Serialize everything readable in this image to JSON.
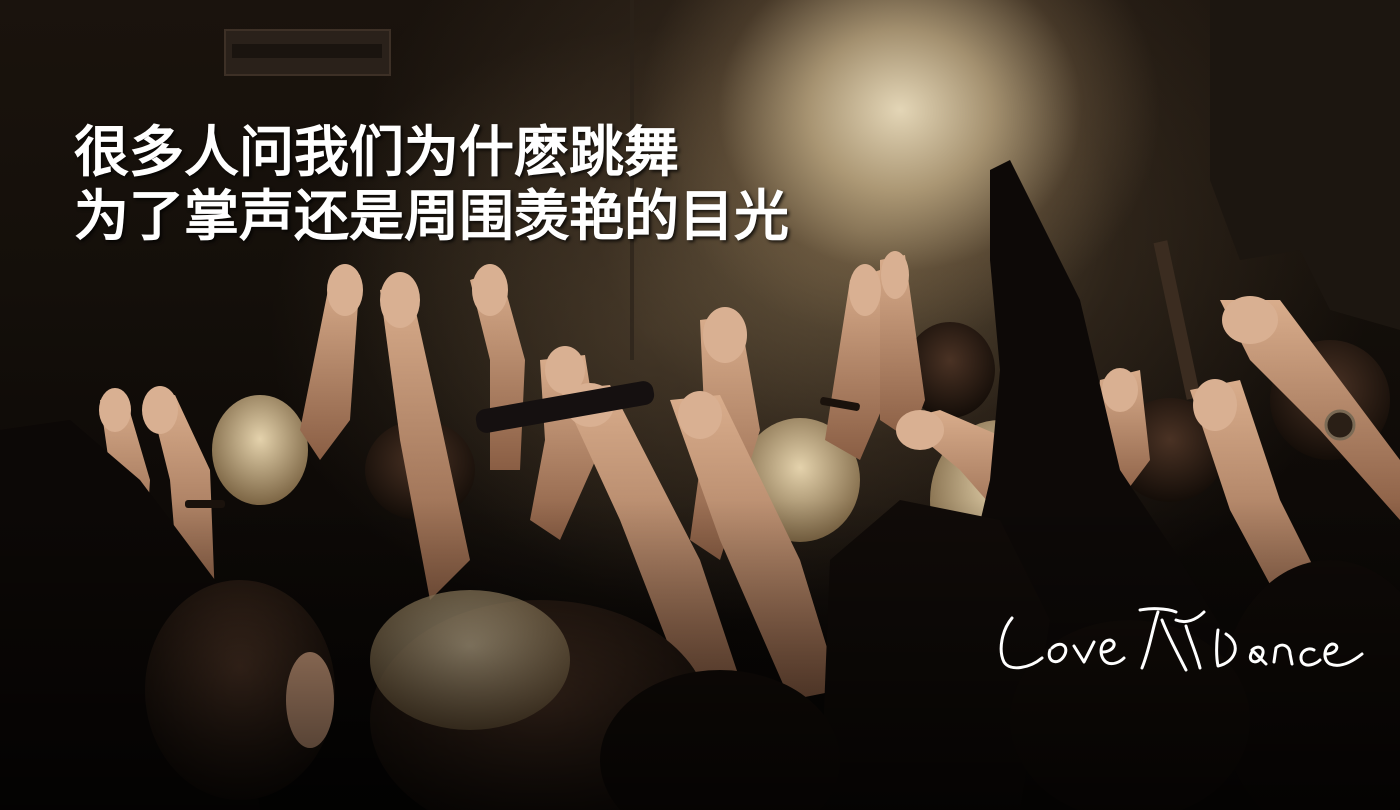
{
  "headline": {
    "line1": "很多人问我们为什麽跳舞",
    "line2": "为了掌声还是周围羡艳的目光"
  },
  "logo": {
    "text": "Love Dance",
    "color": "#ffffff"
  },
  "colors": {
    "stage_light": "#ecdebe",
    "shadow": "#0b0806",
    "skin": "#c99a7a",
    "hair_blonde": "#d8c6a0"
  }
}
